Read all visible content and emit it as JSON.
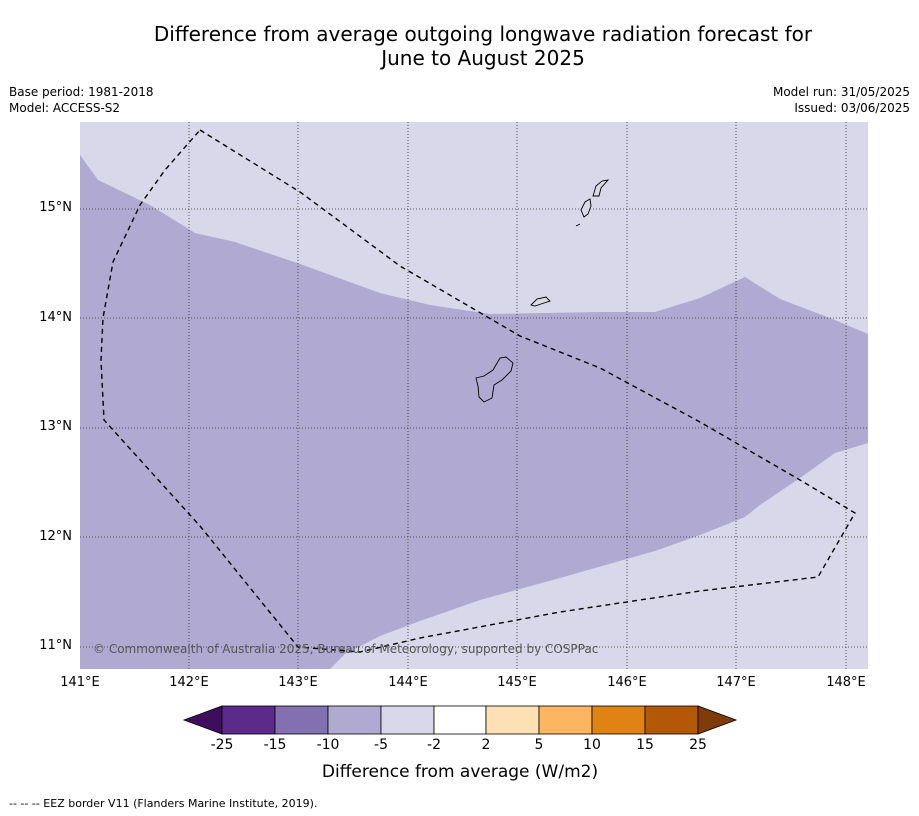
{
  "title": {
    "line1": "Difference from average outgoing longwave radiation forecast for",
    "line2": "June to August 2025"
  },
  "meta": {
    "base_period": "Base period: 1981-2018",
    "model": "Model: ACCESS-S2",
    "model_run": "Model run: 31/05/2025",
    "issued": "Issued: 03/06/2025"
  },
  "axes": {
    "lat_labels": [
      "15°N",
      "14°N",
      "13°N",
      "12°N",
      "11°N"
    ],
    "lon_labels": [
      "141°E",
      "142°E",
      "143°E",
      "144°E",
      "145°E",
      "146°E",
      "147°E",
      "148°E"
    ]
  },
  "copyright": "© Commonwealth of Australia 2025, Bureau of Meteorology, supported by COSPPac",
  "colorbar": {
    "ticks": [
      "-25",
      "-15",
      "-10",
      "-5",
      "-2",
      "2",
      "5",
      "10",
      "15",
      "25"
    ],
    "label": "Difference from average (W/m2)",
    "colors": {
      "extend_low": "#3f0d5e",
      "c1": "#5b2a8a",
      "c2": "#8370b0",
      "c3": "#b0aad2",
      "c4": "#d8d8ea",
      "c5": "#ffffff",
      "c6": "#fde0b4",
      "c7": "#fcb662",
      "c8": "#e08214",
      "c9": "#b35806",
      "extend_high": "#7f3b08"
    }
  },
  "footnote": "--  --  -- EEZ border V11 (Flanders Marine Institute, 2019)."
}
